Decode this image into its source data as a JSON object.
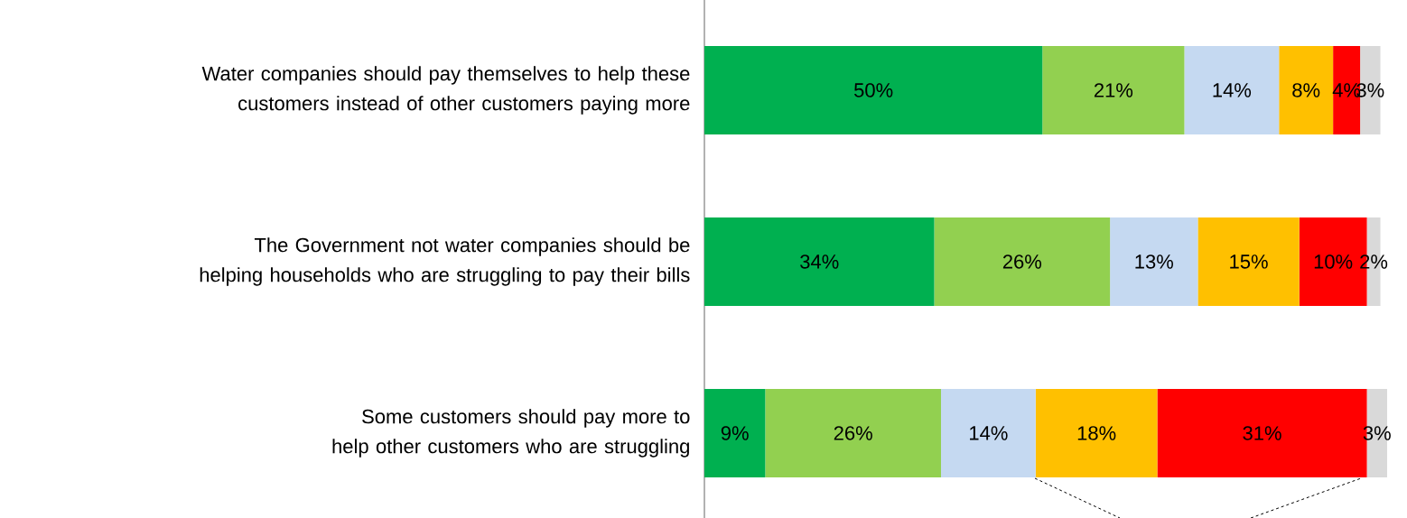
{
  "chart_data": {
    "type": "bar",
    "orientation": "horizontal",
    "stacked": true,
    "tick_labels": "y",
    "categories": [
      "Water companies should pay themselves to help these customers instead of other customers paying more",
      "The Government not water companies should be helping households who are struggling to pay their bills",
      "Some customers should pay more to help other customers who are struggling"
    ],
    "xlim": [
      0,
      101
    ],
    "series": [
      {
        "color": "#00b050",
        "values": [
          50,
          34,
          9
        ],
        "value_labels": [
          "50%",
          "34%",
          "9%"
        ]
      },
      {
        "color": "#92d050",
        "values": [
          21,
          26,
          26
        ],
        "value_labels": [
          "21%",
          "26%",
          "26%"
        ]
      },
      {
        "color": "#c5d9f1",
        "values": [
          14,
          13,
          14
        ],
        "value_labels": [
          "14%",
          "13%",
          "14%"
        ]
      },
      {
        "color": "#ffc000",
        "values": [
          8,
          15,
          18
        ],
        "value_labels": [
          "8%",
          "15%",
          "18%"
        ]
      },
      {
        "color": "#ff0000",
        "values": [
          4,
          10,
          31
        ],
        "value_labels": [
          "4%",
          "10%",
          "31%"
        ]
      },
      {
        "color": "#d9d9d9",
        "values": [
          3,
          2,
          3
        ],
        "value_labels": [
          "3%",
          "2%",
          "3%"
        ]
      }
    ]
  }
}
